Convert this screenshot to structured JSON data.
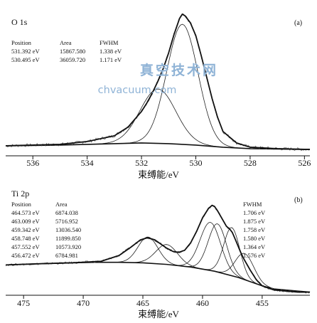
{
  "colors": {
    "ink": "#111111",
    "watermark": "#8fb3d6"
  },
  "chart_data": [
    {
      "type": "line",
      "panel_tag": "(a)",
      "title": "O 1s",
      "xlabel": "束缚能/eV",
      "ylabel": "",
      "x_reversed": true,
      "xlim": [
        537,
        525.8
      ],
      "ylim": [
        0,
        100
      ],
      "x_ticks": [
        536,
        534,
        532,
        530,
        528,
        526
      ],
      "fit_table": {
        "headers": [
          "Position",
          "Area",
          "FWHM"
        ],
        "rows": [
          [
            "531.392 eV",
            "15867.580",
            "1.338 eV"
          ],
          [
            "530.495 eV",
            "36059.720",
            "1.171 eV"
          ]
        ]
      },
      "series": [
        {
          "role": "envelope",
          "x": [
            537,
            535,
            534,
            533,
            532.5,
            532,
            531.8,
            531.6,
            531.4,
            531.2,
            531.0,
            530.8,
            530.6,
            530.5,
            530.4,
            530.2,
            530.0,
            529.8,
            529.6,
            529.4,
            529.2,
            529.0,
            528.5,
            528,
            527,
            526,
            525.8
          ],
          "values": [
            7,
            8,
            10,
            14,
            20,
            31,
            37,
            44,
            52,
            61,
            72,
            85,
            96,
            99,
            98,
            93,
            84,
            70,
            55,
            40,
            27,
            17,
            9,
            6,
            5,
            4.5,
            4.5
          ]
        },
        {
          "role": "peak",
          "center": 531.392,
          "fwhm": 1.338,
          "height": 38
        },
        {
          "role": "peak",
          "center": 530.495,
          "fwhm": 1.171,
          "height": 84
        },
        {
          "role": "background",
          "x": [
            537,
            535,
            533,
            532,
            531,
            530,
            529,
            528,
            526,
            525.8
          ],
          "values": [
            7,
            7.5,
            8.5,
            9,
            8.5,
            7.5,
            6,
            5,
            4.5,
            4.5
          ]
        }
      ]
    },
    {
      "type": "line",
      "panel_tag": "(b)",
      "title": "Ti 2p",
      "xlabel": "束缚能/eV",
      "ylabel": "",
      "x_reversed": true,
      "xlim": [
        476.5,
        451
      ],
      "ylim": [
        0,
        100
      ],
      "x_ticks": [
        475,
        470,
        465,
        460,
        455
      ],
      "fit_table": {
        "headers": [
          "Position",
          "Area",
          "FWHM"
        ],
        "rows": [
          [
            "464.573 eV",
            "6874.038",
            "1.706 eV"
          ],
          [
            "463.009 eV",
            "5716.952",
            "1.875 eV"
          ],
          [
            "459.342 eV",
            "13036.540",
            "1.758 eV"
          ],
          [
            "458.748 eV",
            "11899.850",
            "1.580 eV"
          ],
          [
            "457.552 eV",
            "10573.920",
            "1.364 eV"
          ],
          [
            "456.472 eV",
            "6784.981",
            "1.576 eV"
          ]
        ]
      },
      "series": [
        {
          "role": "envelope",
          "x": [
            476.5,
            474,
            471,
            468.5,
            467,
            466,
            465.2,
            464.6,
            464,
            463.5,
            463,
            462.5,
            462,
            461.5,
            461,
            460.5,
            460,
            459.5,
            459.2,
            459,
            458.7,
            458.3,
            458,
            457.7,
            457.5,
            457.2,
            456.8,
            456.5,
            456,
            455.5,
            455,
            454,
            452,
            451
          ],
          "values": [
            29,
            30,
            31,
            32.5,
            38,
            46,
            53,
            55,
            53,
            49,
            45,
            42,
            41,
            43,
            50,
            61,
            74,
            83,
            86,
            85,
            80,
            72,
            66,
            63,
            60,
            52,
            41,
            34,
            24,
            15,
            9,
            5,
            3,
            3
          ]
        },
        {
          "role": "peak",
          "center": 464.573,
          "fwhm": 1.706,
          "height": 25
        },
        {
          "role": "peak",
          "center": 463.009,
          "fwhm": 1.875,
          "height": 19
        },
        {
          "role": "peak",
          "center": 459.342,
          "fwhm": 1.758,
          "height": 46
        },
        {
          "role": "peak",
          "center": 458.748,
          "fwhm": 1.58,
          "height": 46
        },
        {
          "role": "peak",
          "center": 457.552,
          "fwhm": 1.364,
          "height": 46
        },
        {
          "role": "peak",
          "center": 456.472,
          "fwhm": 1.576,
          "height": 25
        },
        {
          "role": "background",
          "x": [
            476.5,
            474,
            471,
            469,
            467,
            465,
            463,
            461,
            459,
            457,
            456,
            455,
            454,
            452,
            451
          ],
          "values": [
            29,
            30,
            31,
            31.5,
            31.5,
            31,
            29.5,
            27,
            23,
            17,
            13,
            9,
            6,
            4,
            3
          ]
        }
      ]
    }
  ],
  "watermark": {
    "text_cn": "真空技术网",
    "url": "chvacuum.com"
  }
}
